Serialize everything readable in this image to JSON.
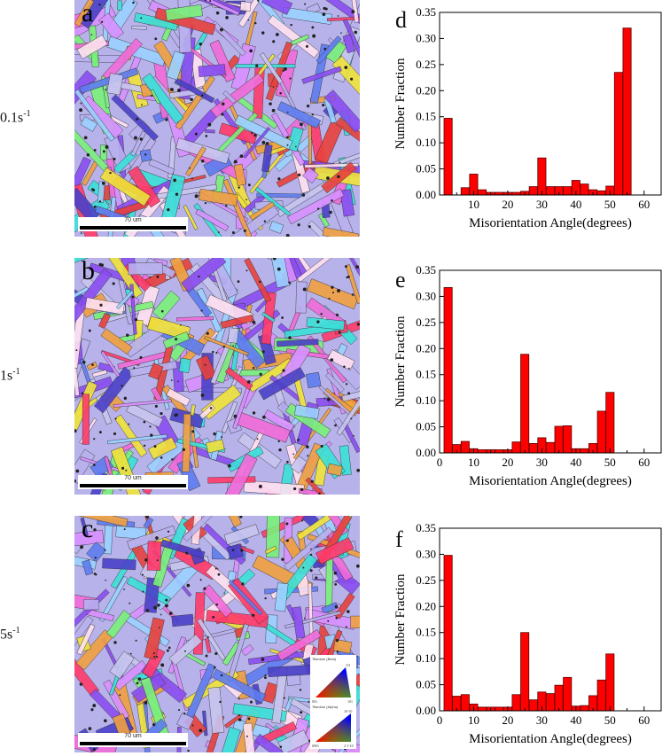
{
  "rows": [
    {
      "strain_rate": "0.1s",
      "exponent": "-1",
      "micro_letter": "a",
      "chart_letter": "d"
    },
    {
      "strain_rate": "1s",
      "exponent": "-1",
      "micro_letter": "b",
      "chart_letter": "e"
    },
    {
      "strain_rate": "5s",
      "exponent": "-1",
      "micro_letter": "c",
      "chart_letter": "f"
    }
  ],
  "scale_bar_label": "70 um",
  "ipf_legend": {
    "beta_title": "Titanium (Beta)",
    "alpha_title": "Titanium (Alpha)",
    "beta_corners": [
      "111",
      "001",
      "101"
    ],
    "alpha_corners": [
      "10-10",
      "0001",
      "2-1-10"
    ]
  },
  "colors": {
    "bar_fill": "#ff0000",
    "bar_stroke": "#5a0000"
  },
  "chart_data": [
    {
      "type": "bar",
      "xlabel": "Misorientation Angle(degrees)",
      "ylabel": "Number Fraction",
      "xlim": [
        0,
        65
      ],
      "ylim": [
        0,
        0.35
      ],
      "xticks": [
        10,
        20,
        30,
        40,
        50,
        60
      ],
      "yticks": [
        0.0,
        0.05,
        0.1,
        0.15,
        0.2,
        0.25,
        0.3,
        0.35
      ],
      "x": [
        2.5,
        7.5,
        10.0,
        12.5,
        15.0,
        17.5,
        20.0,
        22.5,
        25.0,
        27.5,
        30.0,
        32.5,
        35.0,
        37.5,
        40.0,
        42.5,
        45.0,
        47.5,
        50.0,
        52.5,
        55.0,
        57.5,
        60.0
      ],
      "values": [
        0.147,
        0.014,
        0.04,
        0.01,
        0.005,
        0.005,
        0.005,
        0.005,
        0.007,
        0.016,
        0.071,
        0.016,
        0.016,
        0.016,
        0.028,
        0.021,
        0.01,
        0.008,
        0.017,
        0.235,
        0.32,
        0.0,
        0.0
      ]
    },
    {
      "type": "bar",
      "xlabel": "Misorientation Angle(degrees)",
      "ylabel": "Number Fraction",
      "xlim": [
        0,
        65
      ],
      "ylim": [
        0,
        0.35
      ],
      "xticks": [
        0,
        10,
        20,
        30,
        40,
        50,
        60
      ],
      "yticks": [
        0.0,
        0.05,
        0.1,
        0.15,
        0.2,
        0.25,
        0.3,
        0.35
      ],
      "x": [
        2.5,
        5.0,
        7.5,
        10.0,
        12.5,
        15.0,
        17.5,
        20.0,
        22.5,
        25.0,
        27.5,
        30.0,
        32.5,
        35.0,
        37.5,
        40.0,
        42.5,
        45.0,
        47.5,
        50.0,
        52.5,
        55.0,
        57.5,
        60.0
      ],
      "values": [
        0.317,
        0.016,
        0.022,
        0.008,
        0.006,
        0.006,
        0.006,
        0.006,
        0.021,
        0.189,
        0.018,
        0.029,
        0.02,
        0.051,
        0.052,
        0.008,
        0.008,
        0.018,
        0.08,
        0.116,
        0.0,
        0.0,
        0.0,
        0.0
      ]
    },
    {
      "type": "bar",
      "xlabel": "Misorientation Angle(degrees)",
      "ylabel": "Number Fraction",
      "xlim": [
        0,
        65
      ],
      "ylim": [
        0,
        0.35
      ],
      "xticks": [
        0,
        10,
        20,
        30,
        40,
        50,
        60
      ],
      "yticks": [
        0.0,
        0.05,
        0.1,
        0.15,
        0.2,
        0.25,
        0.3,
        0.35
      ],
      "x": [
        2.5,
        5.0,
        7.5,
        10.0,
        12.5,
        15.0,
        17.5,
        20.0,
        22.5,
        25.0,
        27.5,
        30.0,
        32.5,
        35.0,
        37.5,
        40.0,
        42.5,
        45.0,
        47.5,
        50.0,
        52.5,
        55.0,
        57.5,
        60.0
      ],
      "values": [
        0.298,
        0.028,
        0.031,
        0.013,
        0.007,
        0.007,
        0.007,
        0.007,
        0.031,
        0.15,
        0.021,
        0.036,
        0.033,
        0.049,
        0.064,
        0.009,
        0.01,
        0.029,
        0.059,
        0.109,
        0.0,
        0.0,
        0.0,
        0.0
      ]
    }
  ]
}
